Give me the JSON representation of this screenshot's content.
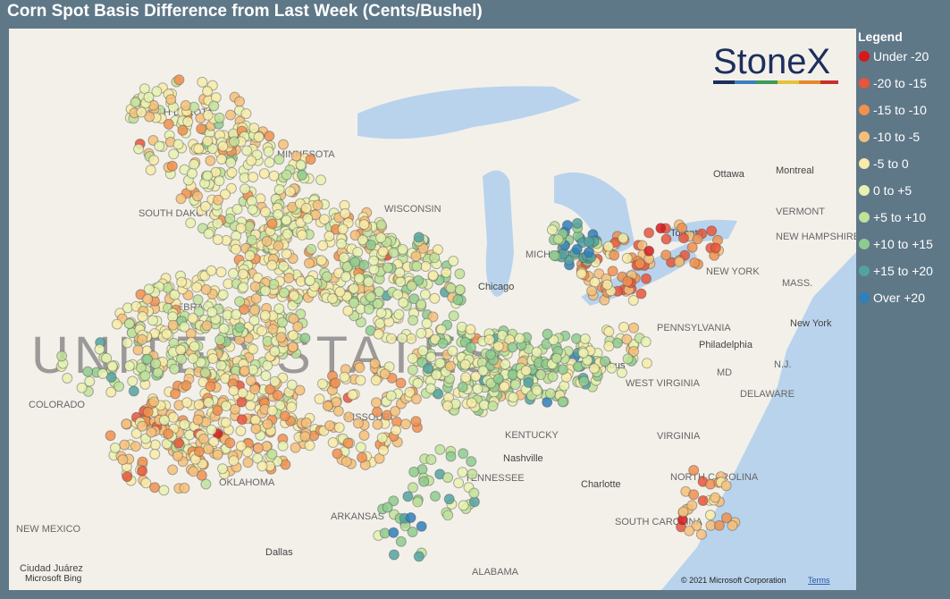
{
  "header": {
    "title": "Corn Spot Basis Difference from Last Week (Cents/Bushel)"
  },
  "legend": {
    "title": "Legend",
    "items": [
      {
        "label": "Under -20",
        "color": "#d7191c"
      },
      {
        "label": "-20 to -15",
        "color": "#e8553a"
      },
      {
        "label": "-15 to -10",
        "color": "#f0914f"
      },
      {
        "label": "-10 to -5",
        "color": "#f5bf7a"
      },
      {
        "label": "-5 to 0",
        "color": "#f7eca8"
      },
      {
        "label": "0 to +5",
        "color": "#e8f2b0"
      },
      {
        "label": "+5 to +10",
        "color": "#bfe29a"
      },
      {
        "label": "+10 to +15",
        "color": "#8ecb8e"
      },
      {
        "label": "+15 to +20",
        "color": "#52a3a0"
      },
      {
        "label": "Over +20",
        "color": "#2f7fba"
      }
    ]
  },
  "map": {
    "country": "UNITED STATES",
    "labels": [
      "NORTH DAKOTA",
      "MINNESOTA",
      "SOUTH DAKOTA",
      "WISCONSIN",
      "MICHIGAN",
      "NEBRASKA",
      "COLORADO",
      "MISSOURI",
      "KENTUCKY",
      "TENNESSEE",
      "ARKANSAS",
      "OKLAHOMA",
      "NEW MEXICO",
      "ALABAMA",
      "VIRGINIA",
      "WEST VIRGINIA",
      "NORTH CAROLINA",
      "SOUTH CAROLINA",
      "PENNSYLVANIA",
      "NEW YORK",
      "VERMONT",
      "NEW HAMPSHIRE",
      "MASS.",
      "DELAWARE",
      "MD",
      "N.J.",
      "Ottawa",
      "Montreal",
      "Toronto",
      "Chicago",
      "Columbus",
      "Philadelphia",
      "New York",
      "Nashville",
      "Dallas",
      "Charlotte",
      "Ciudad Juárez"
    ]
  },
  "logo": "StoneX",
  "attribution": {
    "provider": "Microsoft Bing",
    "copyright": "© 2021 Microsoft Corporation",
    "terms": "Terms"
  }
}
